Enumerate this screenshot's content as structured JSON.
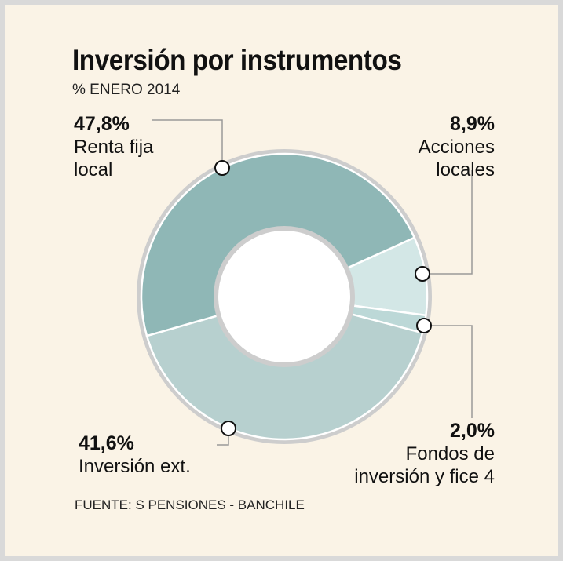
{
  "chart_data": {
    "type": "pie",
    "title": "Inversión por instrumentos",
    "subtitle": "% ENERO 2014",
    "source": "FUENTE: S PENSIONES - BANCHILE",
    "slices": [
      {
        "percent_label": "8,9%",
        "label_lines": [
          "Acciones",
          "locales"
        ],
        "value": 8.9,
        "color": "#d3e7e6"
      },
      {
        "percent_label": "2,0%",
        "label_lines": [
          "Fondos de",
          "inversión y fice 4"
        ],
        "value": 2.0,
        "color": "#bcd8d7"
      },
      {
        "percent_label": "41,6%",
        "label_lines": [
          "Inversión ext."
        ],
        "value": 41.6,
        "color": "#b7d0cf"
      },
      {
        "percent_label": "47,8%",
        "label_lines": [
          "Renta fija",
          "local"
        ],
        "value": 47.8,
        "color": "#8fb7b6"
      }
    ]
  }
}
